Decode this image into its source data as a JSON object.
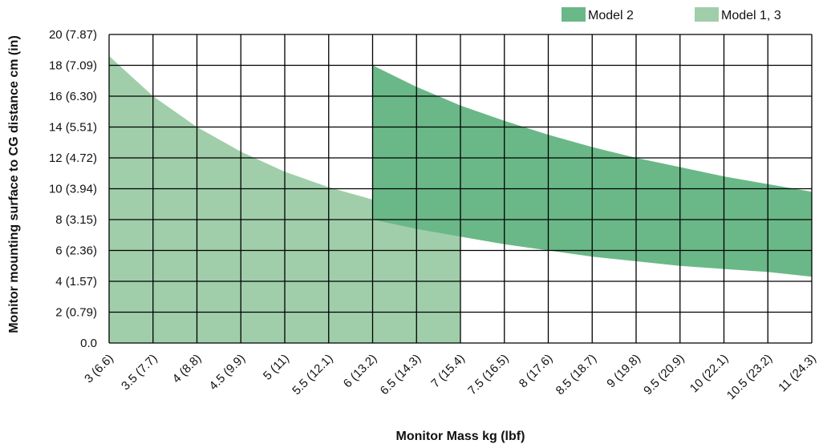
{
  "chart_data": {
    "type": "area",
    "title": "",
    "xlabel": "Monitor Mass kg (lbf)",
    "ylabel": "Monitor mounting surface to CG distance cm (in)",
    "x_ticks": [
      3,
      3.5,
      4,
      4.5,
      5,
      5.5,
      6,
      6.5,
      7,
      7.5,
      8,
      8.5,
      9,
      9.5,
      10,
      10.5,
      11
    ],
    "x_tick_labels": [
      "3 (6.6)",
      "3.5 (7.7)",
      "4 (8.8)",
      "4.5 (9.9)",
      "5 (11)",
      "5.5 (12.1)",
      "6 (13.2)",
      "6.5 (14.3)",
      "7 (15.4)",
      "7.5 (16.5)",
      "8 (17.6)",
      "8.5 (18.7)",
      "9 (19.8)",
      "9.5 (20.9)",
      "10 (22.1)",
      "10.5 (23.2)",
      "11 (24.3)"
    ],
    "y_ticks": [
      0,
      2,
      4,
      6,
      8,
      10,
      12,
      14,
      16,
      18,
      20
    ],
    "y_tick_labels": [
      "0.0",
      "2 (0.79)",
      "4 (1.57)",
      "6 (2.36)",
      "8 (3.15)",
      "10 (3.94)",
      "12 (4.72)",
      "14 (5.51)",
      "16 (6.30)",
      "18 (7.09)",
      "20 (7.87)"
    ],
    "xlim": [
      3,
      11
    ],
    "ylim": [
      0,
      20
    ],
    "grid": true,
    "legend_position": "top-right",
    "series": [
      {
        "name": "Model 2",
        "color": "#6ab887",
        "x": [
          6,
          6.5,
          7,
          7.5,
          8,
          8.5,
          9,
          9.5,
          10,
          10.5,
          11
        ],
        "upper": [
          18.0,
          16.6,
          15.4,
          14.4,
          13.5,
          12.7,
          12.0,
          11.4,
          10.8,
          10.3,
          9.8
        ],
        "lower": [
          8.0,
          7.4,
          6.9,
          6.4,
          6.0,
          5.6,
          5.3,
          5.0,
          4.8,
          4.6,
          4.3
        ]
      },
      {
        "name": "Model 1, 3",
        "color": "#a0ceaa",
        "x": [
          3,
          3.5,
          4,
          4.5,
          5,
          5.5,
          6,
          6.5,
          7
        ],
        "upper": [
          18.6,
          16.0,
          14.0,
          12.4,
          11.1,
          10.1,
          9.3,
          8.6,
          8.0
        ],
        "lower": [
          0,
          0,
          0,
          0,
          0,
          0,
          0,
          0,
          0
        ]
      }
    ]
  }
}
